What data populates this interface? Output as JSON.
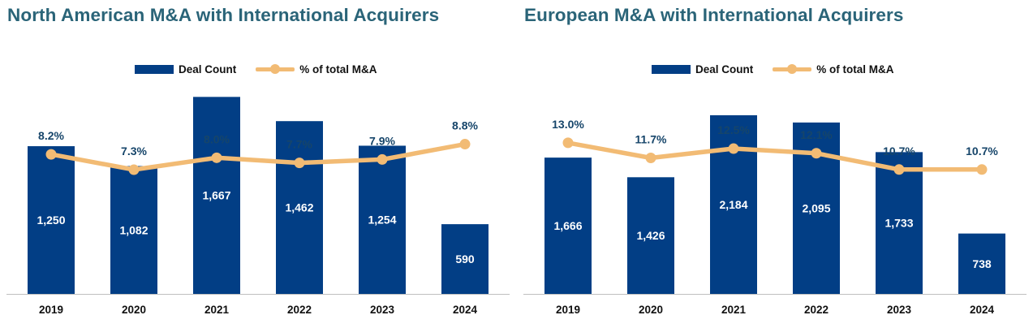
{
  "chart_data": [
    {
      "type": "bar",
      "title": "North American M&A with International Acquirers",
      "categories": [
        "2019",
        "2020",
        "2021",
        "2022",
        "2023",
        "2024"
      ],
      "series": [
        {
          "name": "Deal Count",
          "type": "bar",
          "values": [
            1250,
            1082,
            1667,
            1462,
            1254,
            590
          ],
          "labels": [
            "1,250",
            "1,082",
            "1,667",
            "1,462",
            "1,254",
            "590"
          ],
          "color": "#023e85"
        },
        {
          "name": "% of total M&A",
          "type": "line",
          "values": [
            8.2,
            7.3,
            8.0,
            7.7,
            7.9,
            8.8
          ],
          "labels": [
            "8.2%",
            "7.3%",
            "8.0%",
            "7.7%",
            "7.9%",
            "8.8%"
          ],
          "color": "#f2bb74"
        }
      ],
      "ylim": [
        0,
        1800
      ],
      "y2lim": [
        0,
        12.5
      ],
      "legend": "top-center",
      "grid": false
    },
    {
      "type": "bar",
      "title": "European M&A with International Acquirers",
      "categories": [
        "2019",
        "2020",
        "2021",
        "2022",
        "2023",
        "2024"
      ],
      "series": [
        {
          "name": "Deal Count",
          "type": "bar",
          "values": [
            1666,
            1426,
            2184,
            2095,
            1733,
            738
          ],
          "labels": [
            "1,666",
            "1,426",
            "2,184",
            "2,095",
            "1,733",
            "738"
          ],
          "color": "#023e85"
        },
        {
          "name": "% of total M&A",
          "type": "line",
          "values": [
            13.0,
            11.7,
            12.5,
            12.1,
            10.7,
            10.7
          ],
          "labels": [
            "13.0%",
            "11.7%",
            "12.5%",
            "12.1%",
            "10.7%",
            "10.7%"
          ],
          "color": "#f2bb74"
        }
      ],
      "ylim": [
        0,
        2600
      ],
      "y2lim": [
        0,
        18.3
      ],
      "legend": "top-center",
      "grid": false
    }
  ]
}
